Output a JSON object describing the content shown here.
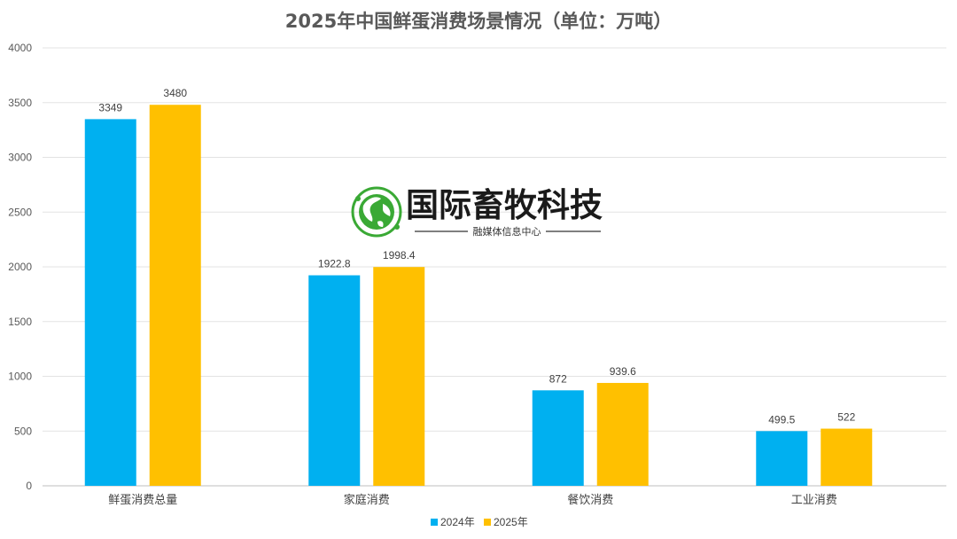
{
  "chart_data": {
    "type": "bar",
    "title": "2025年中国鲜蛋消费场景情况（单位：万吨）",
    "categories": [
      "鲜蛋消费总量",
      "家庭消费",
      "餐饮消费",
      "工业消费"
    ],
    "series": [
      {
        "name": "2024年",
        "values": [
          3349,
          1922.8,
          872,
          499.5
        ],
        "labels": [
          "3349",
          "1922.8",
          "872",
          "499.5"
        ],
        "color": "#00B0F0"
      },
      {
        "name": "2025年",
        "values": [
          3480,
          1998.4,
          939.6,
          522
        ],
        "labels": [
          "3480",
          "1998.4",
          "939.6",
          "522"
        ],
        "color": "#FFC000"
      }
    ],
    "ylim": [
      0,
      4000
    ],
    "yticks": [
      "0",
      "500",
      "1000",
      "1500",
      "2000",
      "2500",
      "3000",
      "3500",
      "4000"
    ],
    "grid": true,
    "legend_position": "bottom",
    "xlabel": "",
    "ylabel": ""
  },
  "watermark": {
    "title": "国际畜牧科技",
    "subtitle": "融媒体信息中心",
    "globe_icon": "globe-icon",
    "brand_color": "#1a1a1a",
    "accent_color": "#3aa935"
  }
}
